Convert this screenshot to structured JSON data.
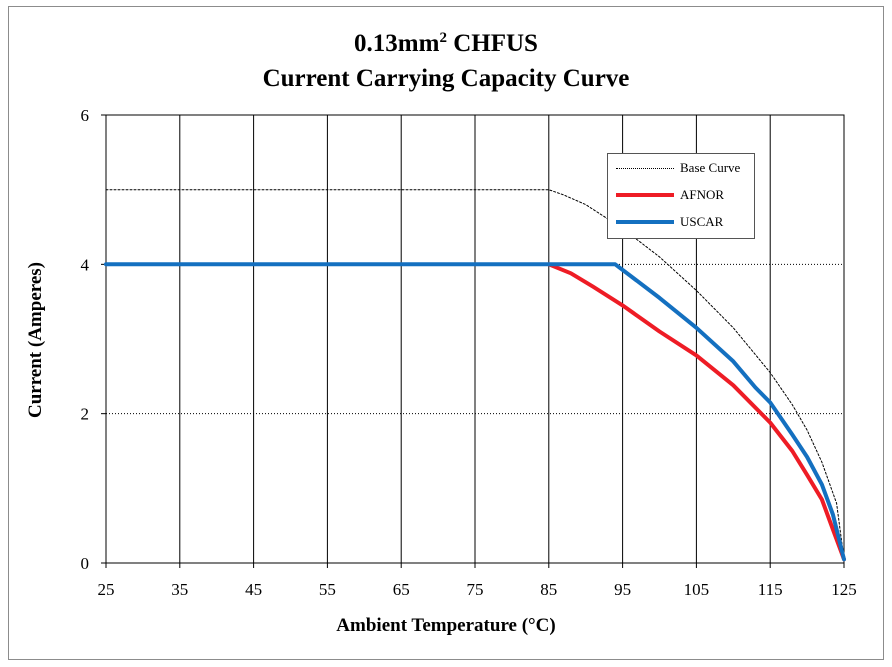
{
  "chart_data": {
    "type": "line",
    "title_main": "0.13mm",
    "title_sup": "2",
    "title_rest": " CHFUS",
    "title_line2": "Current Carrying Capacity Curve",
    "xlabel": "Ambient Temperature (°C)",
    "ylabel": "Current (Amperes)",
    "xlim": [
      25,
      125
    ],
    "ylim": [
      0,
      6
    ],
    "x_ticks": [
      25,
      35,
      45,
      55,
      65,
      75,
      85,
      95,
      105,
      115,
      125
    ],
    "y_ticks": [
      0,
      2,
      4,
      6
    ],
    "grid": "vertical solid at x ticks, horizontal dotted at y ticks",
    "legend_position": "top-right",
    "series": [
      {
        "name": "Base Curve",
        "color": "#000000",
        "style": "dotted",
        "points": [
          [
            25,
            5.0
          ],
          [
            85,
            5.0
          ],
          [
            87,
            4.93
          ],
          [
            90,
            4.8
          ],
          [
            95,
            4.48
          ],
          [
            100,
            4.1
          ],
          [
            105,
            3.65
          ],
          [
            110,
            3.15
          ],
          [
            115,
            2.55
          ],
          [
            118,
            2.12
          ],
          [
            120,
            1.78
          ],
          [
            122,
            1.35
          ],
          [
            124,
            0.8
          ],
          [
            125,
            0.05
          ]
        ]
      },
      {
        "name": "AFNOR",
        "color": "#ee1c25",
        "style": "solid",
        "points": [
          [
            85,
            4.0
          ],
          [
            88,
            3.88
          ],
          [
            91,
            3.7
          ],
          [
            95,
            3.45
          ],
          [
            100,
            3.1
          ],
          [
            105,
            2.78
          ],
          [
            110,
            2.38
          ],
          [
            115,
            1.88
          ],
          [
            118,
            1.5
          ],
          [
            120,
            1.18
          ],
          [
            122,
            0.85
          ],
          [
            123.5,
            0.45
          ],
          [
            125,
            0.05
          ]
        ]
      },
      {
        "name": "USCAR",
        "color": "#1470c0",
        "style": "solid",
        "points": [
          [
            25,
            4.0
          ],
          [
            85,
            4.0
          ],
          [
            94,
            4.0
          ],
          [
            96,
            3.85
          ],
          [
            100,
            3.55
          ],
          [
            105,
            3.15
          ],
          [
            110,
            2.7
          ],
          [
            113,
            2.35
          ],
          [
            115,
            2.15
          ],
          [
            118,
            1.72
          ],
          [
            120,
            1.42
          ],
          [
            122,
            1.05
          ],
          [
            123.5,
            0.65
          ],
          [
            125,
            0.05
          ]
        ]
      }
    ]
  }
}
